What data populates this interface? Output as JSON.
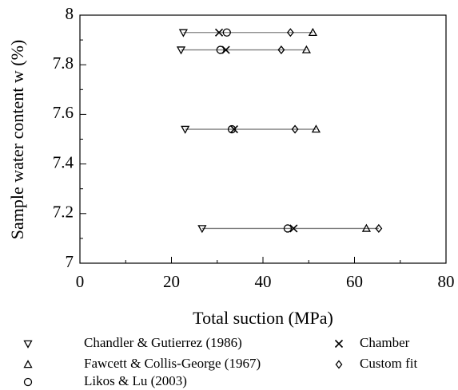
{
  "chart_data": {
    "type": "scatter",
    "x_label": "Total suction (MPa)",
    "y_label": "Sample water content w (%)",
    "xlim": [
      0,
      80
    ],
    "xticks": [
      0,
      20,
      40,
      60,
      80
    ],
    "ylim": [
      7,
      8
    ],
    "yticks": [
      7,
      7.2,
      7.4,
      7.6,
      7.8,
      8
    ],
    "range_line_color": "#808080",
    "series": [
      {
        "name": "Chandler & Gutierrez (1986)",
        "marker": "triangle-down",
        "color": "#000000",
        "x": [
          22.6,
          22.1,
          23.0,
          26.7
        ],
        "y": [
          7.93,
          7.86,
          7.54,
          7.14
        ]
      },
      {
        "name": "Fawcett & Collis-George (1967)",
        "marker": "triangle-up",
        "color": "#000000",
        "x": [
          50.9,
          49.5,
          51.6,
          62.6
        ],
        "y": [
          7.93,
          7.86,
          7.54,
          7.14
        ]
      },
      {
        "name": "Likos & Lu (2003)",
        "marker": "circle",
        "color": "#000000",
        "x": [
          32.1,
          30.7,
          33.2,
          45.4
        ],
        "y": [
          7.93,
          7.86,
          7.54,
          7.14
        ]
      },
      {
        "name": "Chamber",
        "marker": "cross",
        "color": "#000000",
        "x": [
          30.4,
          31.9,
          33.7,
          46.7
        ],
        "y": [
          7.93,
          7.86,
          7.54,
          7.14
        ]
      },
      {
        "name": "Custom fit",
        "marker": "diamond",
        "color": "#000000",
        "x": [
          46.0,
          44.0,
          47.0,
          65.3
        ],
        "y": [
          7.93,
          7.86,
          7.54,
          7.14
        ]
      }
    ]
  }
}
